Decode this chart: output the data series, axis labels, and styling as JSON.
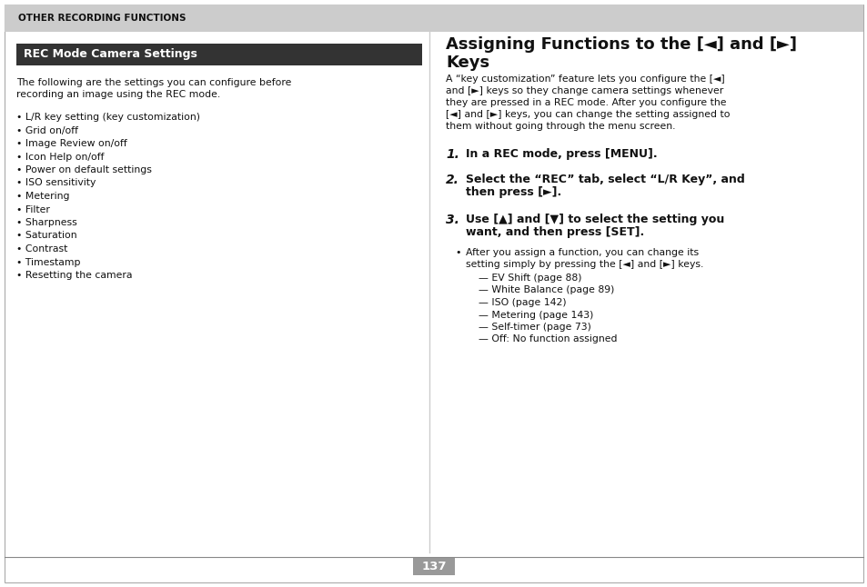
{
  "background_color": "#ffffff",
  "header_bg": "#cccccc",
  "header_text": "OTHER RECORDING FUNCTIONS",
  "left_section_title": "REC Mode Camera Settings",
  "left_title_bg": "#333333",
  "left_title_color": "#ffffff",
  "left_intro": "The following are the settings you can configure before\nrecording an image using the REC mode.",
  "left_bullets": [
    "L/R key setting (key customization)",
    "Grid on/off",
    "Image Review on/off",
    "Icon Help on/off",
    "Power on default settings",
    "ISO sensitivity",
    "Metering",
    "Filter",
    "Sharpness",
    "Saturation",
    "Contrast",
    "Timestamp",
    "Resetting the camera"
  ],
  "right_title_line1": "Assigning Functions to the [◄] and [►]",
  "right_title_line2": "Keys",
  "right_intro": "A “key customization” feature lets you configure the [◄]\nand [►] keys so they change camera settings whenever\nthey are pressed in a REC mode. After you configure the\n[◄] and [►] keys, you can change the setting assigned to\nthem without going through the menu screen.",
  "step1_bold": "In a REC mode, press [MENU].",
  "step2_bold": "Select the “REC” tab, select “L/R Key”, and\nthen press [►].",
  "step3_bold": "Use [▲] and [▼] to select the setting you\nwant, and then press [SET].",
  "sub_bullet_line1": "After you assign a function, you can change its",
  "sub_bullet_line2": "setting simply by pressing the [◄] and [►] keys.",
  "sub_items": [
    "— EV Shift (page 88)",
    "— White Balance (page 89)",
    "— ISO (page 142)",
    "— Metering (page 143)",
    "— Self-timer (page 73)",
    "— Off: No function assigned"
  ],
  "page_number": "137"
}
